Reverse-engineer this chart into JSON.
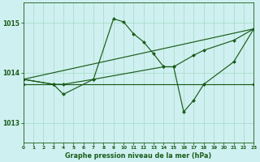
{
  "title": "Graphe pression niveau de la mer (hPa)",
  "background_color": "#cff0f0",
  "grid_color": "#aaddcc",
  "line_color": "#1a5c1a",
  "xlim": [
    0,
    23
  ],
  "ylim": [
    1012.6,
    1015.4
  ],
  "yticks": [
    1013,
    1014,
    1015
  ],
  "xticks": [
    0,
    1,
    2,
    3,
    4,
    5,
    6,
    7,
    8,
    9,
    10,
    11,
    12,
    13,
    14,
    15,
    16,
    17,
    18,
    19,
    20,
    21,
    22,
    23
  ],
  "series0_x": [
    0,
    3,
    4,
    7,
    9,
    10,
    11,
    12,
    13,
    14,
    15,
    16,
    17,
    18,
    21,
    23
  ],
  "series0_y": [
    1013.87,
    1013.77,
    1013.57,
    1013.87,
    1015.08,
    1015.02,
    1014.78,
    1014.62,
    1014.38,
    1014.12,
    1014.12,
    1013.22,
    1013.45,
    1013.77,
    1014.22,
    1014.88
  ],
  "series1_x": [
    0,
    3,
    18,
    23
  ],
  "series1_y": [
    1013.77,
    1013.77,
    1013.77,
    1013.77
  ],
  "series2_x": [
    0,
    3,
    4,
    7,
    14,
    15,
    17,
    18,
    21,
    23
  ],
  "series2_y": [
    1013.87,
    1013.77,
    1013.77,
    1013.87,
    1014.12,
    1014.12,
    1014.35,
    1014.45,
    1014.65,
    1014.88
  ],
  "series3_x": [
    0,
    23
  ],
  "series3_y": [
    1013.87,
    1014.88
  ]
}
